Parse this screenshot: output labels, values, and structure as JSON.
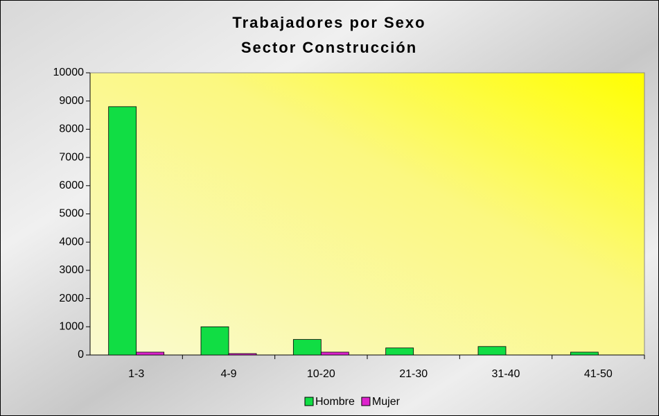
{
  "chart_data": {
    "type": "bar",
    "title": "Trabajadores por Sexo",
    "subtitle": "Sector Construcción",
    "categories": [
      "1-3",
      "4-9",
      "10-20",
      "21-30",
      "31-40",
      "41-50"
    ],
    "series": [
      {
        "name": "Hombre",
        "color": "#11dd44",
        "values": [
          8800,
          1000,
          550,
          250,
          300,
          100
        ]
      },
      {
        "name": "Mujer",
        "color": "#dd22cc",
        "values": [
          100,
          50,
          100,
          0,
          0,
          0
        ]
      }
    ],
    "ylim": [
      0,
      10000
    ],
    "yticks": [
      0,
      1000,
      2000,
      3000,
      4000,
      5000,
      6000,
      7000,
      8000,
      9000,
      10000
    ],
    "legend": "bottom"
  }
}
